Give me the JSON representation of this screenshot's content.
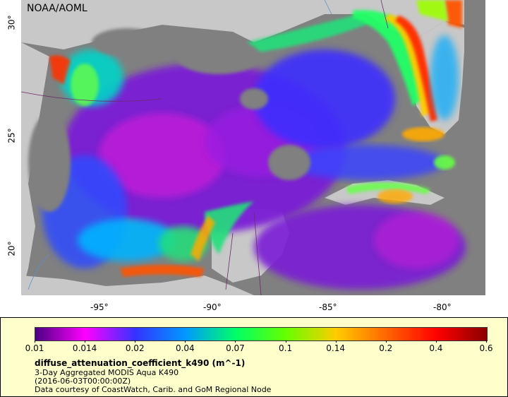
{
  "map": {
    "credit": "NOAA/AOML",
    "x_ticks": [
      "-95°",
      "-90°",
      "-85°",
      "-80°"
    ],
    "y_ticks": [
      "30°",
      "25°",
      "20°"
    ]
  },
  "colors": {
    "ocean_land_gray": "#808080",
    "land_light": "#c8c8c8",
    "panel_bg": "#ffffcc",
    "palette": [
      "#4b0082",
      "#ff00ff",
      "#3333ff",
      "#0099ff",
      "#00ff66",
      "#66ff00",
      "#ffcc00",
      "#ff6600",
      "#ff0000",
      "#8b0000"
    ]
  },
  "legend": {
    "ticks": [
      "0.01",
      "0.014",
      "0.02",
      "0.04",
      "0.07",
      "0.1",
      "0.14",
      "0.2",
      "0.4",
      "0.6"
    ],
    "title": "diffuse_attenuation_coefficient_k490 (m^-1)",
    "line1": "3-Day Aggregated MODIS Aqua K490",
    "line2": "(2016-06-03T00:00:00Z)",
    "line3": "Data courtesy of CoastWatch, Carib. and GoM Regional Node"
  }
}
